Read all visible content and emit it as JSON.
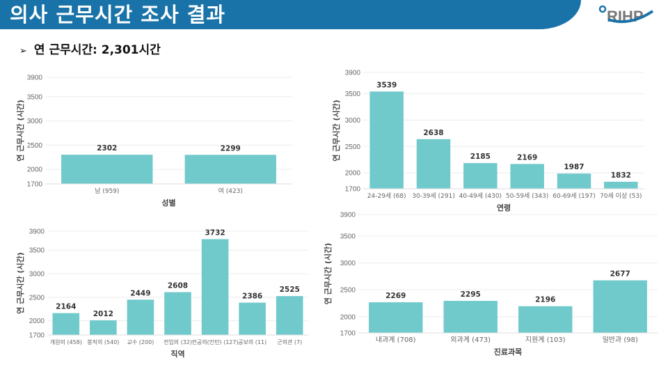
{
  "header": {
    "title": "의사 근무시간 조사 결과",
    "logo_text": "RIHP",
    "brand_color": "#1a73a8"
  },
  "summary": {
    "bullet_icon": "arrow-right-icon",
    "text": "연 근무시간: 2,301시간"
  },
  "chart_data": [
    {
      "type": "bar",
      "title": "",
      "xlabel": "성별",
      "ylabel": "연 근무시간 (시간)",
      "ylim": [
        1700,
        3900
      ],
      "yticks": [
        1700,
        2000,
        2500,
        3000,
        3500,
        3900
      ],
      "grid": true,
      "color": "#70c9cb",
      "categories": [
        "남 (959)",
        "여 (423)"
      ],
      "values": [
        2302,
        2299
      ]
    },
    {
      "type": "bar",
      "title": "",
      "xlabel": "연령",
      "ylabel": "연 근무시간 (시간)",
      "ylim": [
        1700,
        3900
      ],
      "yticks": [
        1700,
        2000,
        2500,
        3000,
        3500,
        3900
      ],
      "grid": true,
      "color": "#70c9cb",
      "categories": [
        "24-29세 (68)",
        "30-39세 (291)",
        "40-49세 (430)",
        "50-59세 (343)",
        "60-69세 (197)",
        "70세 이상 (53)"
      ],
      "values": [
        3539,
        2638,
        2185,
        2169,
        1987,
        1832
      ]
    },
    {
      "type": "bar",
      "title": "",
      "xlabel": "직역",
      "ylabel": "연 근무시간 (시간)",
      "ylim": [
        1700,
        3900
      ],
      "yticks": [
        1700,
        2000,
        2500,
        3000,
        3500,
        3900
      ],
      "grid": true,
      "color": "#70c9cb",
      "categories": [
        "개원의 (458)",
        "봉직의 (540)",
        "교수 (200)",
        "전임의 (32)",
        "전공의(인턴) (127)",
        "공보의 (11)",
        "군의관 (7)"
      ],
      "values": [
        2164,
        2012,
        2449,
        2608,
        3732,
        2386,
        2525
      ]
    },
    {
      "type": "bar",
      "title": "",
      "xlabel": "진료과목",
      "ylabel": "연 근무시간 (시간)",
      "ylim": [
        1700,
        3900
      ],
      "yticks": [
        1700,
        2000,
        2500,
        3000,
        3500,
        3900
      ],
      "grid": true,
      "color": "#70c9cb",
      "categories": [
        "내과계 (708)",
        "외과계 (473)",
        "지원계 (103)",
        "일반과 (98)"
      ],
      "values": [
        2269,
        2295,
        2196,
        2677
      ]
    }
  ]
}
